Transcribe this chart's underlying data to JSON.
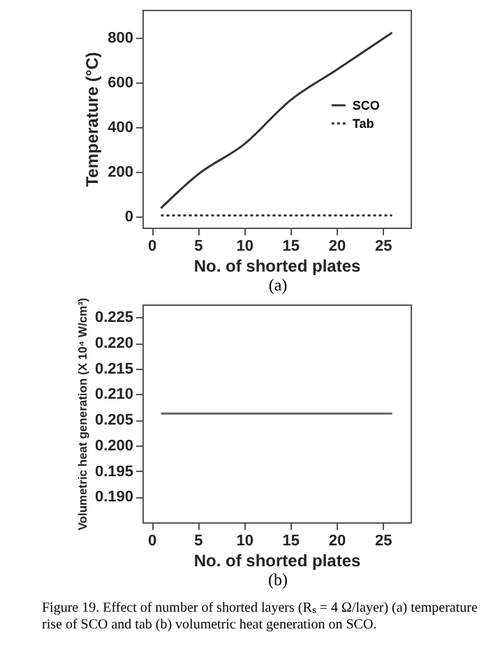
{
  "chart_data": [
    {
      "type": "line",
      "xlabel": "No. of shorted plates",
      "ylabel": "Temperature (°C)",
      "x": [
        1,
        5,
        10,
        15,
        20,
        26
      ],
      "series": [
        {
          "name": "SCO",
          "color": "#333333",
          "line_style": "solid",
          "values": [
            37,
            188,
            323,
            520,
            656,
            823
          ]
        },
        {
          "name": "Tab",
          "color": "#333333",
          "line_style": "dotted",
          "values": [
            5,
            5,
            5,
            5,
            5,
            5
          ]
        }
      ],
      "xlim": [
        -1,
        28
      ],
      "xticks": [
        0,
        5,
        10,
        15,
        20,
        25
      ],
      "ylim": [
        -50,
        925
      ],
      "yticks": [
        0,
        200,
        400,
        600,
        800
      ],
      "grid": false,
      "legend": "right",
      "marker": "none",
      "annotations": [
        "(a)"
      ]
    },
    {
      "type": "line",
      "xlabel": "No. of shorted plates",
      "ylabel": "Volumetric heat generation (X 10⁴ W/cm³)",
      "x": [
        1,
        26
      ],
      "series": [
        {
          "color": "#666666",
          "line_style": "solid",
          "values": [
            0.2062,
            0.2062
          ]
        }
      ],
      "xlim": [
        -1,
        28
      ],
      "xticks": [
        0,
        5,
        10,
        15,
        20,
        25
      ],
      "ylim": [
        0.185,
        0.2275
      ],
      "yticks": [
        {
          "value": 0.19,
          "label": "0.190"
        },
        0.195,
        {
          "value": 0.2,
          "label": "0.200"
        },
        0.205,
        {
          "value": 0.21,
          "label": "0.210"
        },
        0.215,
        {
          "value": 0.22,
          "label": "0.220"
        },
        0.225
      ],
      "grid": false,
      "legend": false,
      "marker": "none",
      "annotations": [
        "(b)",
        "Figure 19. Effect of number of shorted layers (Rₛ = 4 Ω/layer) (a) temperature rise of SCO and tab (b) volumetric heat generation on SCO."
      ]
    }
  ]
}
